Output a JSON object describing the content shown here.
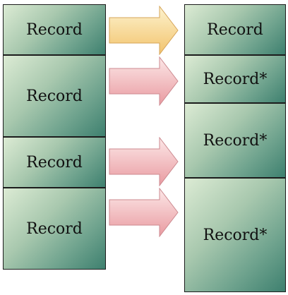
{
  "left_column": {
    "records": [
      {
        "label": "Record"
      },
      {
        "label": "Record"
      },
      {
        "label": "Record"
      },
      {
        "label": "Record"
      }
    ]
  },
  "right_column": {
    "records": [
      {
        "label": "Record"
      },
      {
        "label": "Record*"
      },
      {
        "label": "Record*"
      },
      {
        "label": "Record*"
      }
    ]
  },
  "arrows": [
    {
      "style": "unchanged",
      "color_light": "#fdf1c8",
      "color_dark": "#f3c872"
    },
    {
      "style": "modified",
      "color_light": "#fbe4e4",
      "color_dark": "#eaa3a8"
    },
    {
      "style": "modified",
      "color_light": "#fbe4e4",
      "color_dark": "#eaa3a8"
    },
    {
      "style": "modified",
      "color_light": "#fbe4e4",
      "color_dark": "#eaa3a8"
    }
  ]
}
